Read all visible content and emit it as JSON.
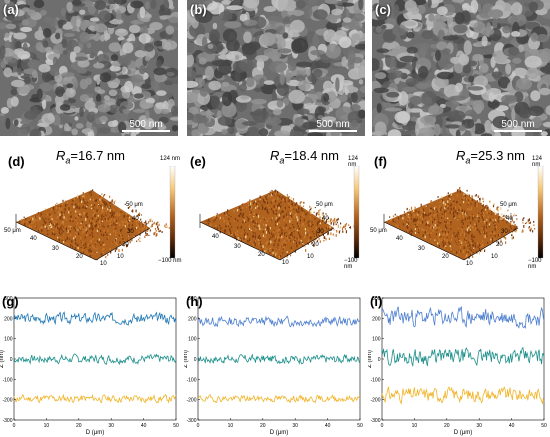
{
  "sem_panels": [
    {
      "label": "(a)",
      "scale": "500 nm"
    },
    {
      "label": "(b)",
      "scale": "500 nm"
    },
    {
      "label": "(c)",
      "scale": "500 nm"
    }
  ],
  "afm_panels": [
    {
      "label": "(d)",
      "ra_symbol": "R",
      "ra_sub": "a",
      "ra_value": "=16.7 nm",
      "cbar_max": "124 nm",
      "cbar_min": "−100 nm",
      "axis_z": "50 μm",
      "axis_y": "50 μm",
      "ticks_left": [
        "50 μm",
        "40",
        "30",
        "20",
        "10"
      ],
      "ticks_right": [
        "50 μm",
        "40",
        "30",
        "20",
        "10"
      ]
    },
    {
      "label": "(e)",
      "ra_symbol": "R",
      "ra_sub": "a",
      "ra_value": "=18.4 nm",
      "cbar_max": "124 nm",
      "cbar_min": "−100 nm",
      "axis_z": "",
      "axis_y": "50 μm",
      "ticks_left": [
        "40",
        "30",
        "20",
        "10"
      ],
      "ticks_right": [
        "50 μm",
        "40",
        "30",
        "20",
        "10"
      ]
    },
    {
      "label": "(f)",
      "ra_symbol": "R",
      "ra_sub": "a",
      "ra_value": "=25.3 nm",
      "cbar_max": "124 nm",
      "cbar_min": "−100 nm",
      "axis_z": "50 μm",
      "axis_y": "50 μm",
      "ticks_left": [
        "50 μm",
        "40",
        "30",
        "20",
        "10"
      ],
      "ticks_right": [
        "50 μm",
        "40",
        "30",
        "20",
        "10"
      ]
    }
  ],
  "chart_data": [
    {
      "type": "line",
      "label": "(g)",
      "xlabel": "D (μm)",
      "ylabel": "Z (nm)",
      "xlim": [
        0,
        50
      ],
      "ylim": [
        -300,
        300
      ],
      "xticks": [
        0,
        10,
        20,
        30,
        40,
        50
      ],
      "yticks": [
        -300,
        -200,
        -100,
        0,
        100,
        200,
        300
      ],
      "series": [
        {
          "color": "#1f77b4",
          "mean": 200,
          "amp": 22,
          "seed": 3
        },
        {
          "color": "#1b8f8a",
          "mean": 0,
          "amp": 18,
          "seed": 7
        },
        {
          "color": "#f0b429",
          "mean": -195,
          "amp": 16,
          "seed": 11
        }
      ]
    },
    {
      "type": "line",
      "label": "(h)",
      "xlabel": "D (μm)",
      "ylabel": "Z (nm)",
      "xlim": [
        0,
        50
      ],
      "ylim": [
        -300,
        300
      ],
      "xticks": [
        0,
        10,
        20,
        30,
        40,
        50
      ],
      "yticks": [
        -300,
        -200,
        -100,
        0,
        100,
        200,
        300
      ],
      "series": [
        {
          "color": "#4f7fd0",
          "mean": 185,
          "amp": 20,
          "seed": 13
        },
        {
          "color": "#1b8f8a",
          "mean": 0,
          "amp": 18,
          "seed": 17
        },
        {
          "color": "#f0b429",
          "mean": -195,
          "amp": 14,
          "seed": 19
        }
      ]
    },
    {
      "type": "line",
      "label": "(i)",
      "xlabel": "D (μm)",
      "ylabel": "Z (nm)",
      "xlim": [
        0,
        50
      ],
      "ylim": [
        -300,
        300
      ],
      "xticks": [
        0,
        10,
        20,
        30,
        40,
        50
      ],
      "yticks": [
        -300,
        -200,
        -100,
        0,
        100,
        200,
        300
      ],
      "series": [
        {
          "color": "#4f7fd0",
          "mean": 205,
          "amp": 38,
          "seed": 23
        },
        {
          "color": "#1b8f8a",
          "mean": 10,
          "amp": 34,
          "seed": 29
        },
        {
          "color": "#f0b429",
          "mean": -175,
          "amp": 30,
          "seed": 31
        }
      ]
    }
  ]
}
